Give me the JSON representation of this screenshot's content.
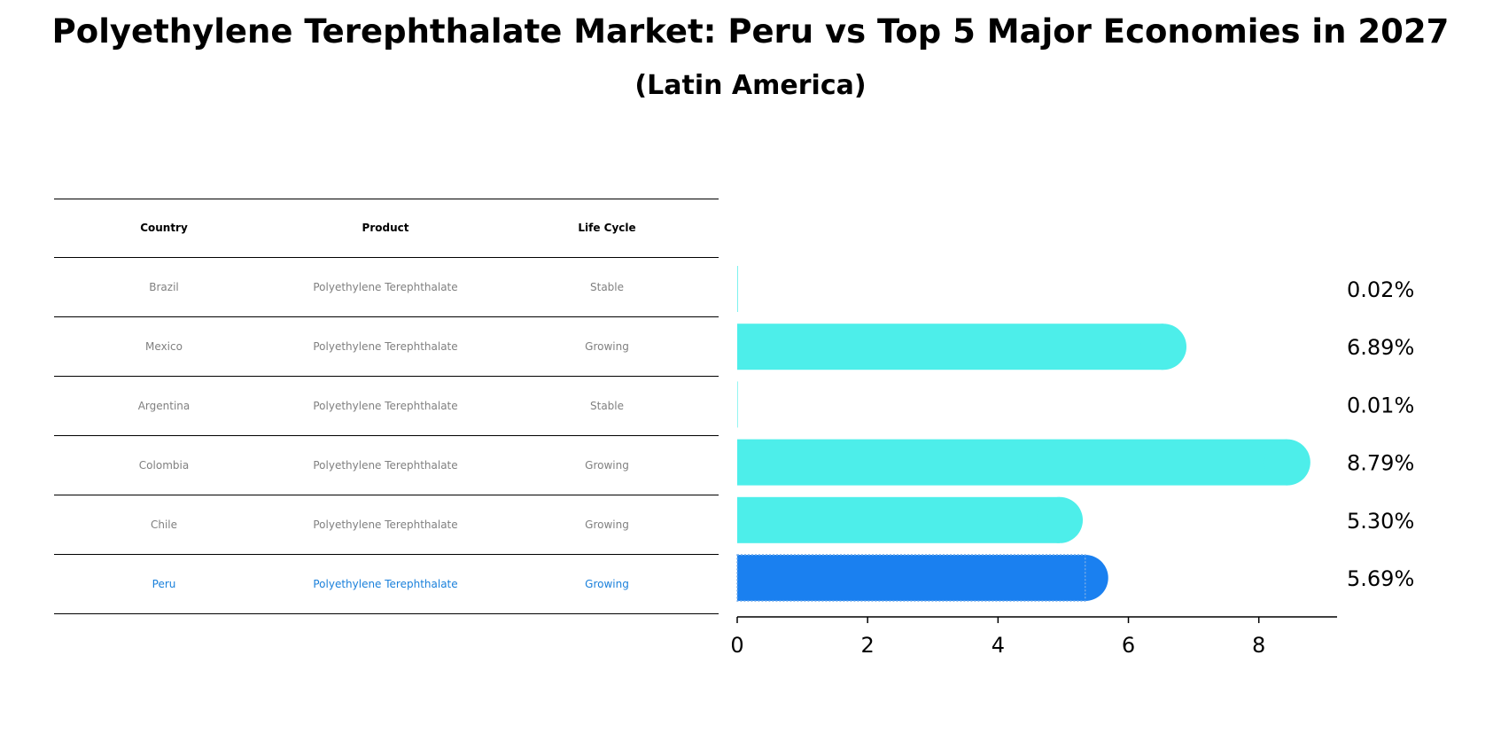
{
  "title": "Polyethylene Terephthalate Market: Peru vs Top 5 Major Economies in 2027",
  "subtitle": "(Latin America)",
  "table": {
    "headers": [
      "Country",
      "Product",
      "Life Cycle"
    ],
    "rows": [
      {
        "country": "Brazil",
        "product": "Polyethylene Terephthalate",
        "life_cycle": "Stable",
        "highlight": false
      },
      {
        "country": "Mexico",
        "product": "Polyethylene Terephthalate",
        "life_cycle": "Growing",
        "highlight": false
      },
      {
        "country": "Argentina",
        "product": "Polyethylene Terephthalate",
        "life_cycle": "Stable",
        "highlight": false
      },
      {
        "country": "Colombia",
        "product": "Polyethylene Terephthalate",
        "life_cycle": "Growing",
        "highlight": false
      },
      {
        "country": "Chile",
        "product": "Polyethylene Terephthalate",
        "life_cycle": "Growing",
        "highlight": false
      },
      {
        "country": "Peru",
        "product": "Polyethylene Terephthalate",
        "life_cycle": "Growing",
        "highlight": true
      }
    ]
  },
  "colors": {
    "bar": "#4deeea",
    "highlight_bar": "#1a80f0",
    "highlight_text": "#1a80db",
    "muted_text": "#808080"
  },
  "chart_data": {
    "type": "bar",
    "orientation": "horizontal",
    "categories": [
      "Brazil",
      "Mexico",
      "Argentina",
      "Colombia",
      "Chile",
      "Peru"
    ],
    "values": [
      0.02,
      6.89,
      0.01,
      8.79,
      5.3,
      5.69
    ],
    "value_labels": [
      "0.02%",
      "6.89%",
      "0.01%",
      "8.79%",
      "5.30%",
      "5.69%"
    ],
    "highlight": "Peru",
    "xlim": [
      0,
      9.2
    ],
    "xticks": [
      0,
      2,
      4,
      6,
      8
    ],
    "xlabel": "",
    "ylabel": "",
    "grid": false
  }
}
